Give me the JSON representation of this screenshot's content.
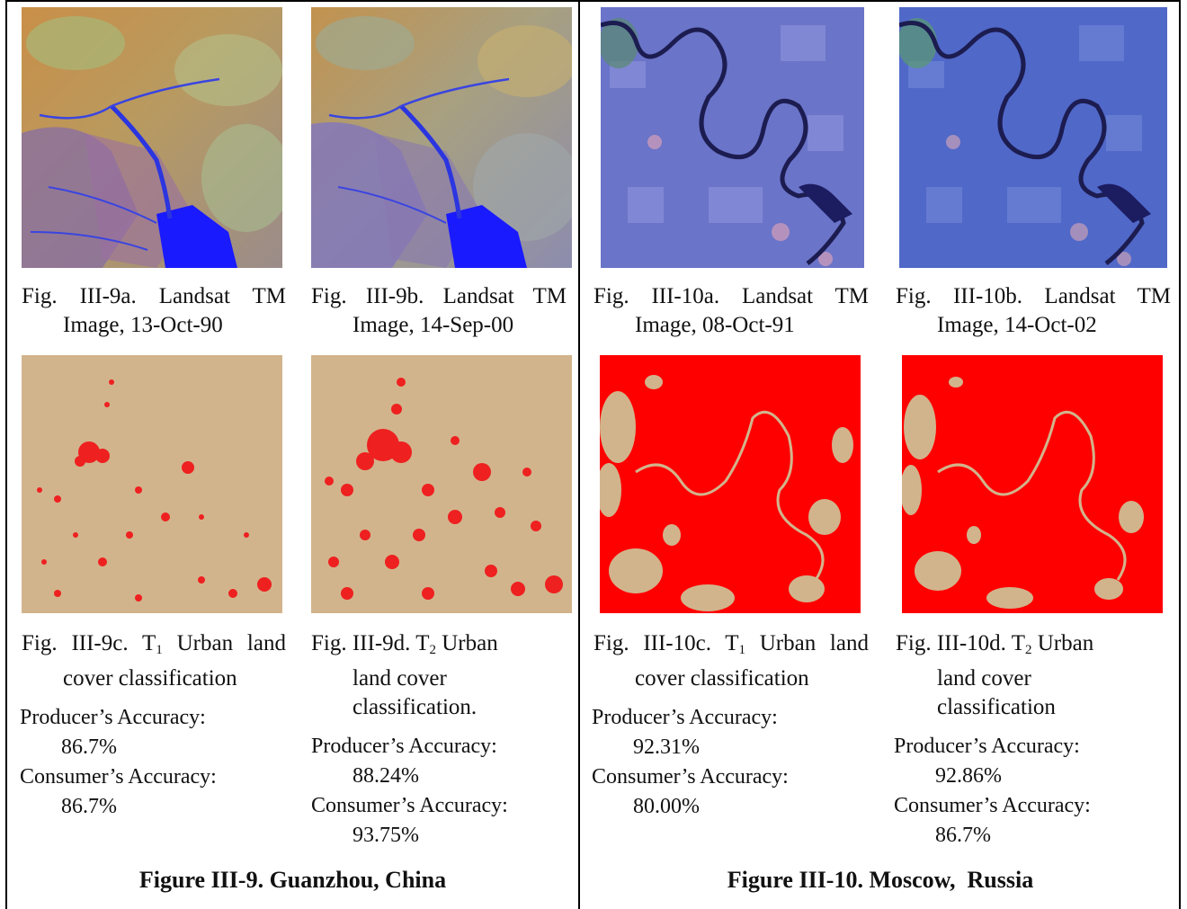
{
  "left": {
    "fig_a": {
      "line1": "Fig. III-9a. Landsat TM",
      "line2": "Image, 13-Oct-90"
    },
    "fig_b": {
      "line1": "Fig. III-9b. Landsat TM",
      "line2": "Image, 14-Sep-00"
    },
    "fig_c": {
      "prefix": "Fig. III-9c. T",
      "sub": "1",
      "suffix": " Urban land",
      "line2": "cover classification"
    },
    "fig_d": {
      "prefix": "Fig. III-9d. T",
      "sub": "2",
      "suffix": " Urban",
      "line2": "land cover",
      "line3": "classification."
    },
    "acc_c": {
      "producer_label": "Producer’s Accuracy:",
      "producer_value": "86.7%",
      "consumer_label": "Consumer’s Accuracy:",
      "consumer_value": "86.7%"
    },
    "acc_d": {
      "producer_label": "Producer’s Accuracy:",
      "producer_value": "88.24%",
      "consumer_label": "Consumer’s Accuracy:",
      "consumer_value": "93.75%"
    },
    "title": "Figure III-9. Guanzhou, China"
  },
  "right": {
    "fig_a": {
      "line1": "Fig. III-10a. Landsat TM",
      "line2": "Image, 08-Oct-91"
    },
    "fig_b": {
      "line1": "Fig. III-10b. Landsat TM",
      "line2": "Image, 14-Oct-02"
    },
    "fig_c": {
      "prefix": "Fig. III-10c. T",
      "sub": "1",
      "suffix": " Urban land",
      "line2": "cover classification"
    },
    "fig_d": {
      "prefix": "Fig. III-10d. T",
      "sub": "2",
      "suffix": " Urban",
      "line2": "land cover",
      "line3": "classification"
    },
    "acc_c": {
      "producer_label": "Producer’s Accuracy:",
      "producer_value": "92.31%",
      "consumer_label": "Consumer’s Accuracy:",
      "consumer_value": "80.00%"
    },
    "acc_d": {
      "producer_label": "Producer’s Accuracy:",
      "producer_value": "92.86%",
      "consumer_label": "Consumer’s Accuracy:",
      "consumer_value": "86.7%"
    },
    "title": "Figure III-10. Moscow,  Russia"
  },
  "colors": {
    "urban_red": "#ff0000",
    "background_tan": "#d2b48c",
    "water_blue": "#1a1aff",
    "landsat_blue": "#5a66c8"
  }
}
